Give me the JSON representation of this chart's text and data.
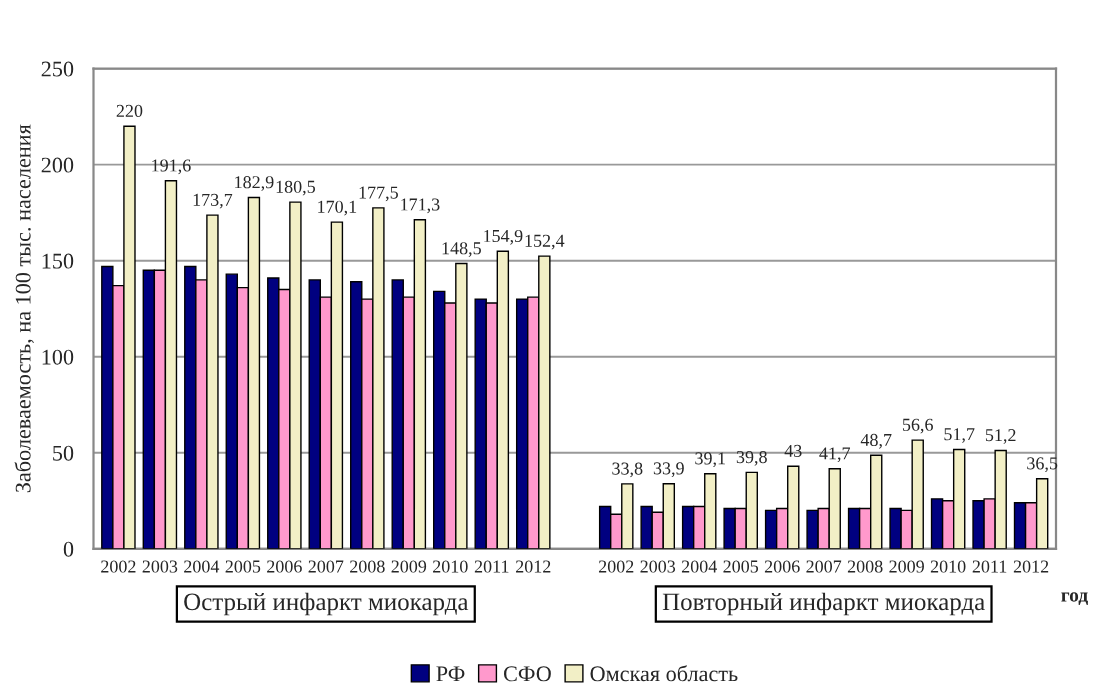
{
  "chart_data": {
    "type": "bar",
    "ylabel": "Заболеваемость, на 100 тыс. населения",
    "categories": [
      "2002",
      "2003",
      "2004",
      "2005",
      "2006",
      "2007",
      "2008",
      "2009",
      "2010",
      "2011",
      "2012",
      null,
      "2002",
      "2003",
      "2004",
      "2005",
      "2006",
      "2007",
      "2008",
      "2009",
      "2010",
      "2011",
      "2012"
    ],
    "series": [
      {
        "name": "РФ",
        "color": "#000080",
        "values": [
          147,
          145,
          147,
          143,
          141,
          140,
          139,
          140,
          134,
          130,
          130,
          null,
          22,
          22,
          22,
          21,
          20,
          20,
          21,
          21,
          26,
          25,
          24
        ]
      },
      {
        "name": "СФО",
        "color": "#ff99cc",
        "values": [
          137,
          145,
          140,
          136,
          135,
          131,
          130,
          131,
          128,
          128,
          131,
          null,
          18,
          19,
          22,
          21,
          21,
          21,
          21,
          20,
          25,
          26,
          24
        ]
      },
      {
        "name": "Омская область",
        "color": "#f2efc6",
        "values": [
          220,
          191.6,
          173.7,
          182.9,
          180.5,
          170.1,
          177.5,
          171.3,
          148.5,
          154.9,
          152.4,
          null,
          33.8,
          33.9,
          39.1,
          39.8,
          43,
          41.7,
          48.7,
          56.6,
          51.7,
          51.2,
          36.5
        ],
        "value_labels": [
          "220",
          "191,6",
          "173,7",
          "182,9",
          "180,5",
          "170,1",
          "177,5",
          "171,3",
          "148,5",
          "154,9",
          "152,4",
          null,
          "33,8",
          "33,9",
          "39,1",
          "39,8",
          "43",
          "41,7",
          "48,7",
          "56,6",
          "51,7",
          "51,2",
          "36,5"
        ]
      }
    ],
    "ylim": [
      0,
      250
    ],
    "yticks": [
      0,
      50,
      100,
      150,
      200,
      250
    ],
    "grid": "y",
    "legend": "bottom",
    "annotations": [
      "Острый инфаркт миокарда",
      "Повторный инфаркт миокарда",
      "год"
    ]
  }
}
